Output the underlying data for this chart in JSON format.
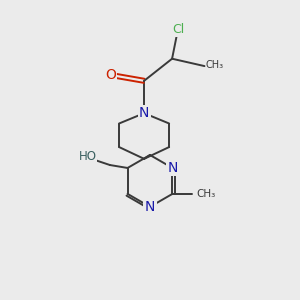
{
  "background_color": "#ebebeb",
  "figsize": [
    3.0,
    3.0
  ],
  "dpi": 100,
  "bond_color": "#3a3a3a",
  "bond_width": 1.4,
  "atom_bg_color": "#ebebeb",
  "colors": {
    "Cl": "#4caf50",
    "O": "#cc2200",
    "N": "#1a1aaa",
    "C": "#3a3a3a",
    "HO": "#3a6060"
  }
}
